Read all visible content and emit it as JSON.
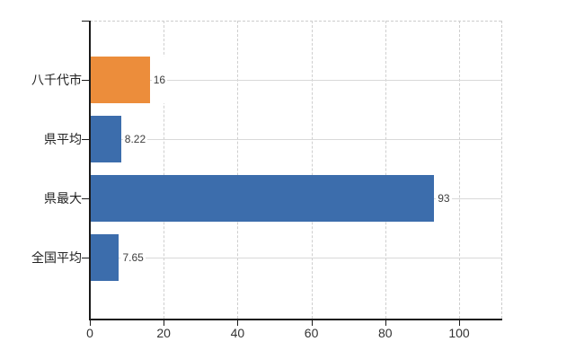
{
  "chart_data": {
    "type": "bar",
    "orientation": "horizontal",
    "title": "",
    "xlabel": "",
    "ylabel": "",
    "categories": [
      "八千代市",
      "県平均",
      "県最大",
      "全国平均"
    ],
    "values": [
      16,
      8.22,
      93,
      7.65
    ],
    "value_labels": [
      "16",
      "8.22",
      "93",
      "7.65"
    ],
    "bar_colors": [
      "#EC8D3B",
      "#3C6DAC",
      "#3C6DAC",
      "#3C6DAC"
    ],
    "x_ticks": [
      0,
      20,
      40,
      60,
      80,
      100
    ],
    "x_tick_labels": [
      "0",
      "20",
      "40",
      "60",
      "80",
      "100"
    ],
    "xlim": [
      0,
      111.7
    ],
    "grid": true,
    "legend": false,
    "colors": {
      "axis": "#1a1a1a",
      "gridline_solid": "#d9d9d9",
      "gridline_dashed": "#cccccc",
      "value_text": "#3d3d3d",
      "tick_text": "#333333",
      "category_text": "#222222",
      "background": "#ffffff"
    }
  }
}
